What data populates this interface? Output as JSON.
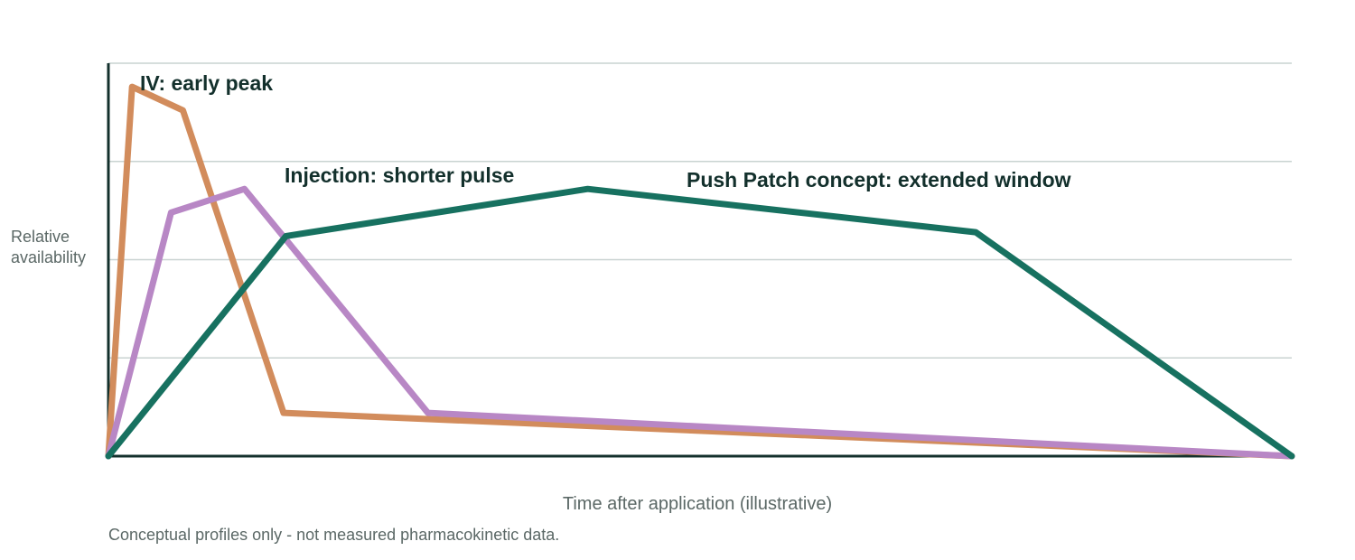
{
  "chart_data": {
    "type": "line",
    "title": "",
    "xlabel": "Time after application (illustrative)",
    "ylabel": "Relative availability",
    "note": "Conceptual profiles only - not measured pharmacokinetic data.",
    "xlim": [
      0,
      100
    ],
    "ylim": [
      0,
      100
    ],
    "grid": true,
    "legend": "none",
    "series": [
      {
        "name": "IV: early peak",
        "color": "#d28c5c",
        "x": [
          0,
          2,
          6.3,
          14.8,
          100
        ],
        "y": [
          0,
          94,
          88,
          11,
          0
        ]
      },
      {
        "name": "Injection: shorter pulse",
        "color": "#b887c5",
        "x": [
          0,
          5.3,
          11.5,
          27,
          100
        ],
        "y": [
          0,
          62,
          68,
          11,
          0
        ]
      },
      {
        "name": "Push Patch concept: extended window",
        "color": "#177160",
        "x": [
          0,
          15,
          40.5,
          73.3,
          100
        ],
        "y": [
          0,
          56,
          68,
          57,
          0
        ]
      }
    ]
  }
}
